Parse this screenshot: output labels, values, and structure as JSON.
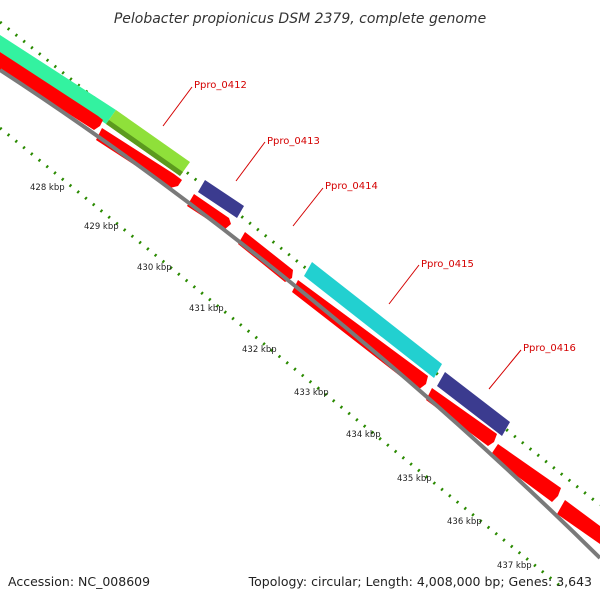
{
  "title": "Pelobacter propionicus DSM 2379, complete genome",
  "footer": {
    "accession": "Accession: NC_008609",
    "summary": "Topology: circular; Length: 4,008,000 bp; Genes: 3,643"
  },
  "ticks": [
    "428 kbp",
    "429 kbp",
    "430 kbp",
    "431 kbp",
    "432 kbp",
    "433 kbp",
    "434 kbp",
    "435 kbp",
    "436 kbp",
    "437 kbp"
  ],
  "genes": [
    "Ppro_0412",
    "Ppro_0413",
    "Ppro_0414",
    "Ppro_0415",
    "Ppro_0416"
  ],
  "colors": {
    "backbone": "#7a7a7a",
    "cds": "#ff0000",
    "dots": "#2a8a00",
    "label": "#d40000",
    "feature_green": "#33f2a0",
    "feature_lime": "#8fe03a",
    "feature_navy": "#3b3b8f",
    "feature_cyan": "#22d0d0"
  }
}
